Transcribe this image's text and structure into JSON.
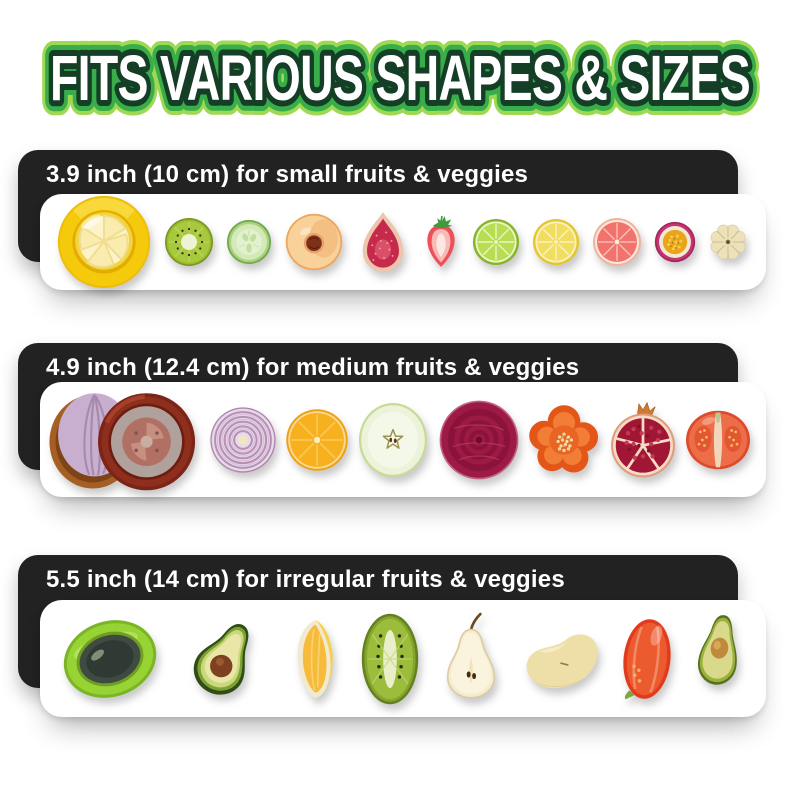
{
  "title": "FITS VARIOUS SHAPES & SIZES",
  "colors": {
    "title_fill": "#ffffff",
    "title_outline_inner": "#143e25",
    "title_outline_outer": "#38ad49",
    "title_outline_glow": "#9fd852",
    "panel_background": "#222222",
    "card_background": "#ffffff",
    "page_background": "#ffffff"
  },
  "sections": [
    {
      "label": "3.9 inch (10 cm) for small fruits & veggies",
      "items": [
        {
          "name": "lemon-in-yellow-hugger",
          "w": 96,
          "h": 96
        },
        {
          "name": "kiwi-slice",
          "w": 50,
          "h": 50
        },
        {
          "name": "cucumber-slice",
          "w": 46,
          "h": 46
        },
        {
          "name": "peach-half",
          "w": 60,
          "h": 60
        },
        {
          "name": "fig-half",
          "w": 54,
          "h": 64
        },
        {
          "name": "strawberry-half",
          "w": 38,
          "h": 54
        },
        {
          "name": "lime-slice",
          "w": 48,
          "h": 48
        },
        {
          "name": "lemon-slice",
          "w": 48,
          "h": 48
        },
        {
          "name": "grapefruit-slice",
          "w": 50,
          "h": 50
        },
        {
          "name": "passion-fruit-half",
          "w": 42,
          "h": 42
        },
        {
          "name": "garlic-head",
          "w": 40,
          "h": 40
        }
      ]
    },
    {
      "label": "4.9 inch (12.4 cm) for medium fruits & veggies",
      "items": [
        {
          "name": "onion-and-tomato-in-huggers",
          "w": 156,
          "h": 104
        },
        {
          "name": "red-onion-slice",
          "w": 68,
          "h": 68
        },
        {
          "name": "orange-slice",
          "w": 64,
          "h": 64
        },
        {
          "name": "green-apple-slice",
          "w": 74,
          "h": 80
        },
        {
          "name": "beet-slice",
          "w": 82,
          "h": 82
        },
        {
          "name": "bell-pepper-half",
          "w": 74,
          "h": 78
        },
        {
          "name": "pomegranate-half",
          "w": 68,
          "h": 80
        },
        {
          "name": "tomato-half",
          "w": 68,
          "h": 64
        }
      ]
    },
    {
      "label": "5.5 inch (14 cm) for irregular fruits & veggies",
      "items": [
        {
          "name": "avocado-in-green-hugger",
          "w": 112,
          "h": 106
        },
        {
          "name": "avocado-half-with-pit",
          "w": 84,
          "h": 80
        },
        {
          "name": "citrus-wedge",
          "w": 56,
          "h": 84
        },
        {
          "name": "kiwi-half",
          "w": 64,
          "h": 94
        },
        {
          "name": "pear-half",
          "w": 62,
          "h": 100
        },
        {
          "name": "peeled-pear-half",
          "w": 84,
          "h": 76
        },
        {
          "name": "roma-tomato-half",
          "w": 52,
          "h": 88
        },
        {
          "name": "avocado-half",
          "w": 56,
          "h": 92
        }
      ]
    }
  ]
}
